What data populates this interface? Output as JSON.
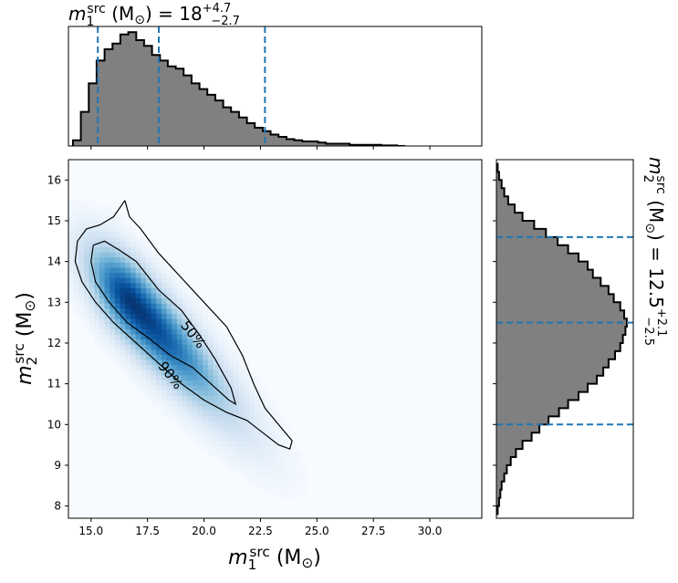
{
  "chart_data": [
    {
      "type": "histogram",
      "panel": "top-marginal",
      "title": {
        "base": "m",
        "sub": "1",
        "sup": "src",
        "unit": "(M",
        "unit_sub": "⊙",
        "unit_close": ")",
        "value": "= 18",
        "err_up": "+4.7",
        "err_down": "−2.7"
      },
      "xlim": [
        14.0,
        32.3
      ],
      "ylim": [
        0,
        1.05
      ],
      "bin_width": 0.35,
      "bin_start": 14.2,
      "counts": [
        0.05,
        0.3,
        0.55,
        0.75,
        0.85,
        0.9,
        0.98,
        1.0,
        0.93,
        0.88,
        0.8,
        0.75,
        0.7,
        0.68,
        0.62,
        0.55,
        0.5,
        0.45,
        0.4,
        0.34,
        0.3,
        0.25,
        0.2,
        0.16,
        0.13,
        0.1,
        0.08,
        0.06,
        0.05,
        0.04,
        0.04,
        0.03,
        0.02,
        0.02,
        0.02,
        0.01,
        0.01,
        0.01,
        0.01,
        0.005,
        0.005,
        0.0
      ],
      "quantile_lines": [
        15.3,
        18.0,
        22.7
      ],
      "fill_color": "#808080",
      "line_color": "#1f77b4"
    },
    {
      "type": "heatmap",
      "panel": "joint",
      "xlabel": {
        "base": "m",
        "sub": "1",
        "sup": "src",
        "unit": "(M",
        "unit_sub": "⊙",
        "unit_close": ")"
      },
      "ylabel": {
        "base": "m",
        "sub": "2",
        "sup": "src",
        "unit": "(M",
        "unit_sub": "⊙",
        "unit_close": ")"
      },
      "xlim": [
        14.0,
        32.3
      ],
      "ylim": [
        7.7,
        16.5
      ],
      "xticks": [
        "15.0",
        "17.5",
        "20.0",
        "22.5",
        "25.0",
        "27.5",
        "30.0"
      ],
      "xtick_values": [
        15.0,
        17.5,
        20.0,
        22.5,
        25.0,
        27.5,
        30.0
      ],
      "yticks": [
        "8",
        "9",
        "10",
        "11",
        "12",
        "13",
        "14",
        "15",
        "16"
      ],
      "ytick_values": [
        8,
        9,
        10,
        11,
        12,
        13,
        14,
        15,
        16
      ],
      "colormap": "Blues",
      "density_ridge": {
        "peak_m1": 16.8,
        "peak_m2": 13.0,
        "slope": -0.6,
        "spread_along": 3.2,
        "spread_across": 0.6
      },
      "contours": [
        {
          "label": "50%",
          "label_position": [
            19.5,
            12.2
          ],
          "points": [
            [
              15.1,
              14.4
            ],
            [
              15.6,
              14.5
            ],
            [
              16.2,
              14.3
            ],
            [
              17.0,
              14.0
            ],
            [
              18.0,
              13.3
            ],
            [
              19.0,
              12.8
            ],
            [
              19.8,
              12.2
            ],
            [
              20.5,
              11.6
            ],
            [
              21.2,
              10.9
            ],
            [
              21.4,
              10.5
            ],
            [
              21.1,
              10.6
            ],
            [
              20.3,
              11.0
            ],
            [
              19.5,
              11.4
            ],
            [
              18.5,
              11.7
            ],
            [
              17.6,
              12.1
            ],
            [
              16.6,
              12.5
            ],
            [
              15.8,
              13.0
            ],
            [
              15.2,
              13.5
            ],
            [
              15.0,
              14.0
            ],
            [
              15.1,
              14.4
            ]
          ]
        },
        {
          "label": "90%",
          "label_position": [
            18.5,
            11.2
          ],
          "points": [
            [
              16.5,
              15.5
            ],
            [
              16.7,
              15.1
            ],
            [
              17.2,
              14.8
            ],
            [
              18.0,
              14.2
            ],
            [
              19.0,
              13.6
            ],
            [
              20.0,
              13.0
            ],
            [
              21.0,
              12.4
            ],
            [
              21.7,
              11.7
            ],
            [
              22.2,
              11.0
            ],
            [
              22.7,
              10.4
            ],
            [
              23.3,
              10.0
            ],
            [
              23.9,
              9.6
            ],
            [
              23.8,
              9.4
            ],
            [
              23.3,
              9.5
            ],
            [
              22.6,
              9.8
            ],
            [
              21.9,
              10.1
            ],
            [
              21.0,
              10.3
            ],
            [
              20.0,
              10.6
            ],
            [
              19.0,
              11.0
            ],
            [
              18.0,
              11.5
            ],
            [
              17.0,
              12.0
            ],
            [
              16.0,
              12.5
            ],
            [
              15.2,
              13.0
            ],
            [
              14.6,
              13.5
            ],
            [
              14.3,
              14.0
            ],
            [
              14.4,
              14.5
            ],
            [
              14.8,
              14.8
            ],
            [
              15.4,
              14.9
            ],
            [
              16.0,
              15.1
            ],
            [
              16.5,
              15.5
            ]
          ]
        }
      ]
    },
    {
      "type": "histogram",
      "panel": "right-marginal",
      "orientation": "horizontal",
      "title": {
        "base": "m",
        "sub": "2",
        "sup": "src",
        "unit": "(M",
        "unit_sub": "⊙",
        "unit_close": ")",
        "value": "= 12.5",
        "err_up": "+2.1",
        "err_down": "−2.5"
      },
      "ylim": [
        7.7,
        16.5
      ],
      "xlim": [
        0,
        1.05
      ],
      "bin_width": 0.2,
      "bin_start": 7.8,
      "counts": [
        0.01,
        0.02,
        0.03,
        0.04,
        0.06,
        0.08,
        0.11,
        0.15,
        0.2,
        0.27,
        0.33,
        0.4,
        0.48,
        0.55,
        0.63,
        0.7,
        0.77,
        0.82,
        0.86,
        0.91,
        0.95,
        0.97,
        0.99,
        1.0,
        0.98,
        0.95,
        0.9,
        0.86,
        0.8,
        0.74,
        0.7,
        0.63,
        0.55,
        0.47,
        0.38,
        0.29,
        0.2,
        0.14,
        0.09,
        0.06,
        0.04,
        0.02,
        0.01
      ],
      "quantile_lines": [
        10.0,
        12.5,
        14.6
      ],
      "fill_color": "#808080",
      "line_color": "#1f77b4"
    }
  ]
}
